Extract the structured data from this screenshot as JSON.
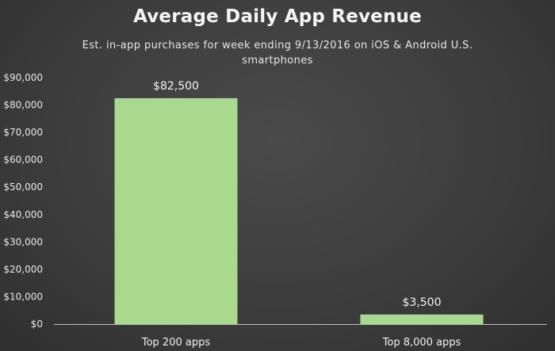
{
  "chart_data": {
    "type": "bar",
    "title": "Average Daily App Revenue",
    "subtitle": "Est. in-app purchases for week ending 9/13/2016 on iOS & Android U.S. smartphones",
    "categories": [
      "Top 200 apps",
      "Top 8,000 apps"
    ],
    "values": [
      82500,
      3500
    ],
    "data_labels": [
      "$82,500",
      "$3,500"
    ],
    "xlabel": "",
    "ylabel": "",
    "ylim": [
      0,
      90000
    ],
    "yticks": [
      0,
      10000,
      20000,
      30000,
      40000,
      50000,
      60000,
      70000,
      80000,
      90000
    ],
    "ytick_labels": [
      "$0",
      "$10,000",
      "$20,000",
      "$30,000",
      "$40,000",
      "$50,000",
      "$60,000",
      "$70,000",
      "$80,000",
      "$90,000"
    ],
    "grid": false,
    "legend": "none",
    "colors": {
      "bar": "#a9d98f",
      "background": "#3d3d3d",
      "axis": "#bfbfbf",
      "text": "#f2f2f2"
    }
  }
}
